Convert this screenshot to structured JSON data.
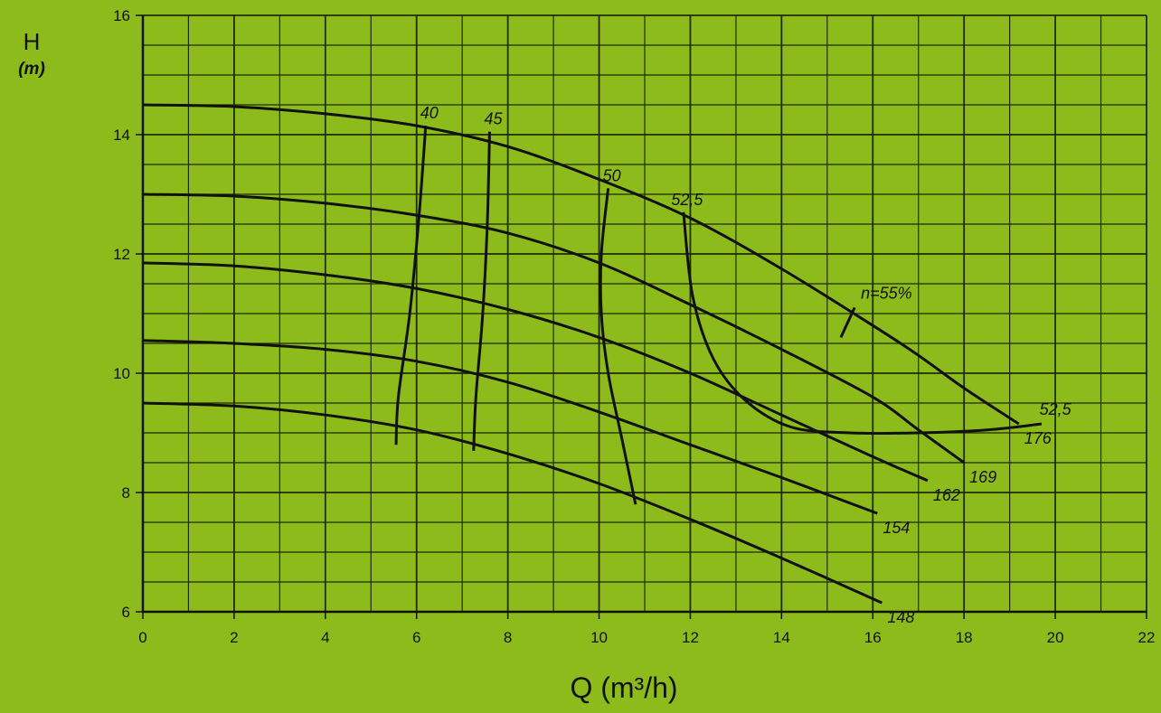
{
  "chart_data": {
    "type": "line",
    "title": "",
    "xlabel": "Q (m³/h)",
    "ylabel": "H",
    "ylabel_unit": "(m)",
    "xlim": [
      0,
      22
    ],
    "ylim": [
      6,
      16
    ],
    "x_ticks": [
      "0",
      "2",
      "4",
      "6",
      "8",
      "10",
      "12",
      "14",
      "16",
      "18",
      "20",
      "22"
    ],
    "y_ticks": [
      "6",
      "8",
      "10",
      "12",
      "14",
      "16"
    ],
    "grid": true,
    "colors": {
      "background": "#8dbb1c",
      "ink": "#111111",
      "grid": "#1e2a08"
    },
    "head_curves": [
      {
        "label": "176",
        "x": [
          0,
          2,
          4,
          6,
          8,
          10,
          12,
          14,
          16,
          17,
          18,
          19.2
        ],
        "y": [
          14.5,
          14.47,
          14.35,
          14.15,
          13.8,
          13.25,
          12.6,
          11.75,
          10.8,
          10.3,
          9.75,
          9.15
        ]
      },
      {
        "label": "169",
        "x": [
          0,
          2,
          4,
          6,
          8,
          10,
          12,
          14,
          16,
          17,
          18
        ],
        "y": [
          13.0,
          12.97,
          12.85,
          12.65,
          12.35,
          11.85,
          11.15,
          10.4,
          9.6,
          9.05,
          8.5
        ]
      },
      {
        "label": "162",
        "x": [
          0,
          2,
          4,
          6,
          8,
          10,
          12,
          14,
          16,
          17.2
        ],
        "y": [
          11.85,
          11.8,
          11.65,
          11.42,
          11.07,
          10.6,
          10.0,
          9.3,
          8.6,
          8.2
        ]
      },
      {
        "label": "154",
        "x": [
          0,
          2,
          4,
          6,
          8,
          10,
          12,
          14,
          16.1
        ],
        "y": [
          10.55,
          10.5,
          10.4,
          10.2,
          9.85,
          9.35,
          8.8,
          8.25,
          7.65
        ]
      },
      {
        "label": "148",
        "x": [
          0,
          2,
          4,
          6,
          8,
          10,
          12,
          14,
          16.2
        ],
        "y": [
          9.5,
          9.45,
          9.3,
          9.05,
          8.65,
          8.15,
          7.55,
          6.9,
          6.15
        ]
      }
    ],
    "efficiency_curves": [
      {
        "label": "40",
        "x": [
          6.2,
          6.05,
          5.85,
          5.6,
          5.55
        ],
        "y": [
          14.15,
          12.6,
          11.0,
          9.6,
          8.8
        ]
      },
      {
        "label": "45",
        "x": [
          7.6,
          7.55,
          7.45,
          7.3,
          7.25
        ],
        "y": [
          14.05,
          12.5,
          11.0,
          9.6,
          8.7
        ]
      },
      {
        "label": "50",
        "x": [
          10.2,
          10.05,
          10.05,
          10.2,
          10.5,
          10.8
        ],
        "y": [
          13.1,
          12.0,
          11.0,
          10.0,
          8.9,
          7.8
        ]
      },
      {
        "label": "52,5",
        "x": [
          11.85,
          12.05,
          12.5,
          13.2,
          14.2,
          15.5,
          17,
          18.5,
          19.7
        ],
        "y": [
          12.7,
          11.3,
          10.25,
          9.55,
          9.1,
          9.0,
          9.0,
          9.05,
          9.15
        ]
      }
    ],
    "annotations": [
      {
        "text": "n=55%",
        "x": 16.3,
        "y": 11.25
      },
      {
        "text": "52,5",
        "x": 20.0,
        "y": 9.3
      }
    ]
  }
}
